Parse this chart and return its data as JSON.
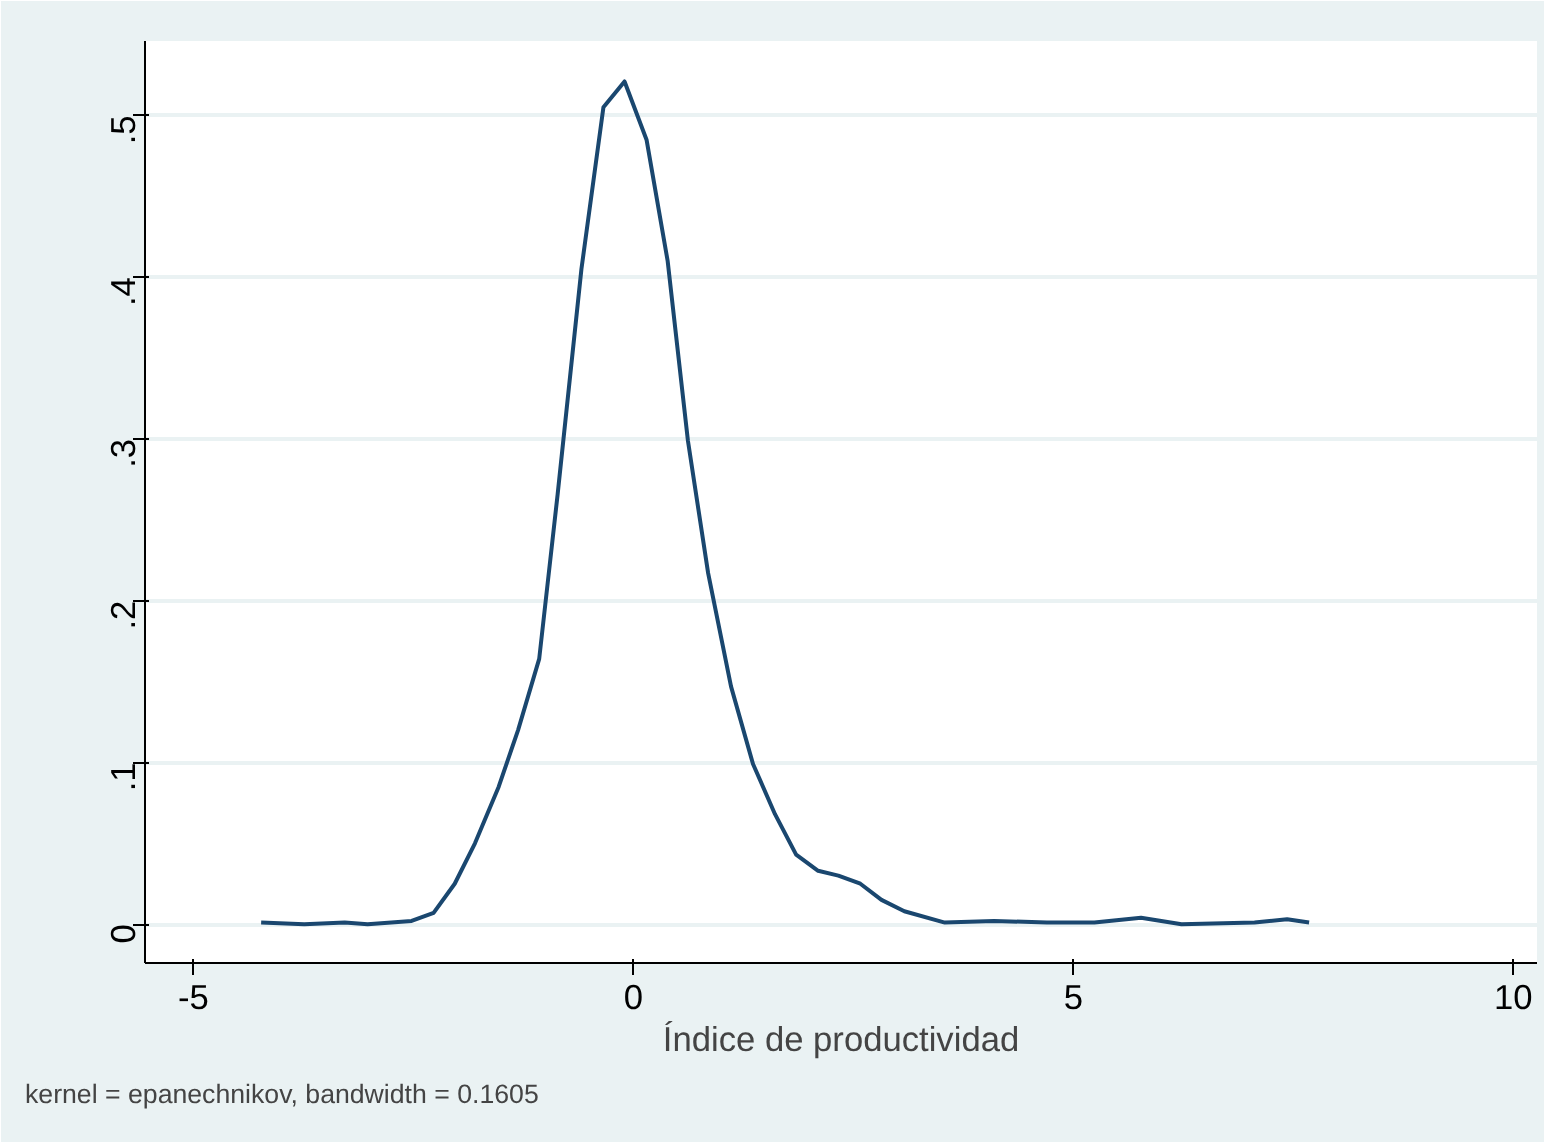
{
  "chart_data": {
    "type": "line",
    "xlabel": "Índice de productividad",
    "annotations": [
      "kernel = epanechnikov, bandwidth = 0.1605"
    ],
    "x": [
      -4.23,
      -3.74,
      -3.28,
      -3.02,
      -2.52,
      -2.27,
      -2.03,
      -1.8,
      -1.53,
      -1.31,
      -1.07,
      -0.86,
      -0.59,
      -0.34,
      -0.1,
      0.15,
      0.39,
      0.62,
      0.85,
      1.11,
      1.36,
      1.61,
      1.85,
      2.1,
      2.33,
      2.58,
      2.82,
      3.08,
      3.54,
      4.1,
      4.7,
      5.24,
      5.77,
      6.23,
      7.06,
      7.43,
      7.68
    ],
    "series": [
      {
        "color": "#1a476f",
        "values": [
          0.001,
          0,
          0.001,
          0,
          0.002,
          0.007,
          0.025,
          0.05,
          0.085,
          0.12,
          0.164,
          0.266,
          0.405,
          0.505,
          0.521,
          0.485,
          0.41,
          0.299,
          0.217,
          0.147,
          0.099,
          0.068,
          0.043,
          0.033,
          0.03,
          0.025,
          0.015,
          0.008,
          0.001,
          0.002,
          0.001,
          0.001,
          0.004,
          0,
          0.001,
          0.003,
          0.001
        ]
      }
    ],
    "xlim": [
      -5.55,
      10.27
    ],
    "ylim": [
      -0.024,
      0.546
    ],
    "xticks": [
      -5,
      0,
      5,
      10
    ],
    "yticks": [
      0,
      {
        "value": 0.1,
        "label": ".1"
      },
      {
        "value": 0.2,
        "label": ".2"
      },
      {
        "value": 0.3,
        "label": ".3"
      },
      {
        "value": 0.4,
        "label": ".4"
      },
      {
        "value": 0.5,
        "label": ".5"
      }
    ],
    "grid": "y",
    "marker": "none",
    "line_style": "solid"
  }
}
